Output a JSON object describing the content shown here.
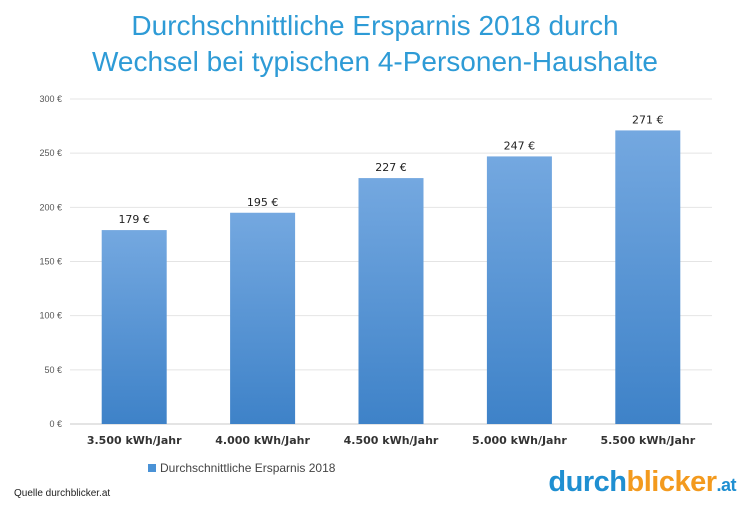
{
  "title": {
    "line1": "Durchschnittliche Ersparnis 2018 durch",
    "line2": "Wechsel bei typischen 4-Personen-Haushalte"
  },
  "chart_data": {
    "type": "bar",
    "categories": [
      "3.500 kWh/Jahr",
      "4.000 kWh/Jahr",
      "4.500 kWh/Jahr",
      "5.000 kWh/Jahr",
      "5.500 kWh/Jahr"
    ],
    "series": [
      {
        "name": "Durchschnittliche Ersparnis 2018",
        "values": [
          179,
          195,
          227,
          247,
          271
        ]
      }
    ],
    "data_labels": [
      "179 €",
      "195 €",
      "227 €",
      "247 €",
      "271 €"
    ],
    "y_ticks": [
      0,
      50,
      100,
      150,
      200,
      250,
      300
    ],
    "y_tick_labels": [
      "0 €",
      "50 €",
      "100 €",
      "150 €",
      "200 €",
      "250 €",
      "300 €"
    ],
    "ylim": [
      0,
      300
    ],
    "grid": true,
    "legend_position": "bottom-left",
    "bar_color": "#4a92d6"
  },
  "legend": {
    "label": "Durchschnittliche Ersparnis 2018"
  },
  "source": "Quelle durchblicker.at",
  "logo": {
    "part1": "durch",
    "part2": "blicker",
    "part3": ".at"
  }
}
